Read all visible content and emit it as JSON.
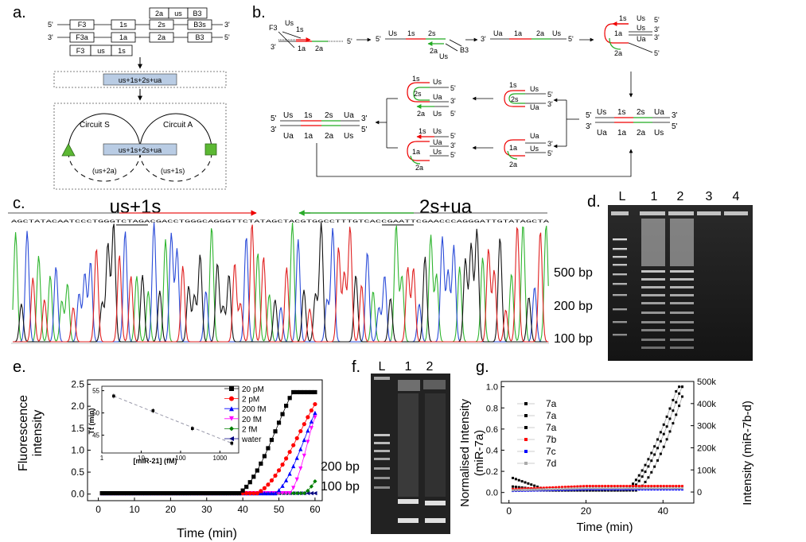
{
  "panel_labels": {
    "a": "a.",
    "b": "b.",
    "c": "c.",
    "d": "d.",
    "e": "e.",
    "f": "f.",
    "g": "g."
  },
  "panel_a": {
    "strand_top": [
      "F3",
      "1s",
      "2s",
      "B3s"
    ],
    "strand_bottom": [
      "F3a",
      "1a",
      "2a",
      "B3"
    ],
    "primer_top": [
      "2a",
      "us",
      "B3"
    ],
    "primer_bottom": [
      "F3",
      "us",
      "1s"
    ],
    "product": "us+1s+2s+ua",
    "circuit_s": "Circuit S",
    "circuit_a": "Circuit A",
    "circle_product": "us+1s+2s+ua",
    "loop_left": "(us+2a)",
    "loop_right": "(us+1s)",
    "ends": {
      "five": "5'",
      "three": "3'"
    }
  },
  "panel_b": {
    "labels": {
      "F3": "F3",
      "Us": "Us",
      "1s": "1s",
      "1a": "1a",
      "2a": "2a",
      "2s": "2s",
      "B3": "B3",
      "Ua": "Ua",
      "five": "5'",
      "three": "3'"
    }
  },
  "panel_c": {
    "left_title": "us+1s",
    "right_title": "2s+ua",
    "sequence": "AGCTATACAATCCCTGGGTCTAGACGACCTGGGCAGGGTTCTATAGCTACGTGGCCTTTGTCACCGAATTCGAACCCAGGGATTGTATAGCTA",
    "size_markers": [
      "500 bp",
      "200 bp",
      "100 bp"
    ]
  },
  "panel_d": {
    "lanes": [
      "L",
      "1",
      "2",
      "3",
      "4"
    ]
  },
  "panel_e": {
    "y_label": [
      "Fluorescence",
      "intensity"
    ],
    "x_label": "Time (min)",
    "inset_x_label": "[miR-21] (fM)",
    "inset_y_label": "Tt (min)",
    "size_markers": [
      "200 bp",
      "100 bp"
    ],
    "legend": [
      {
        "name": "20 pM",
        "color": "#000000",
        "marker": "square"
      },
      {
        "name": "2 pM",
        "color": "#ff0000",
        "marker": "circle"
      },
      {
        "name": "200 fM",
        "color": "#0000ff",
        "marker": "triangle-up"
      },
      {
        "name": "20 fM",
        "color": "#ff00ff",
        "marker": "triangle-down"
      },
      {
        "name": "2 fM",
        "color": "#008000",
        "marker": "diamond"
      },
      {
        "name": "water",
        "color": "#000080",
        "marker": "triangle-left"
      }
    ]
  },
  "panel_f": {
    "lanes": [
      "L",
      "1",
      "2"
    ]
  },
  "panel_g": {
    "y_label_left": [
      "Normalised Intensity",
      "(miR-7a)"
    ],
    "y_label_right": "Intensity (miR-7b-d)",
    "x_label": "Time (min)",
    "legend": [
      {
        "name": "7a",
        "color": "#000000"
      },
      {
        "name": "7a",
        "color": "#000000"
      },
      {
        "name": "7a",
        "color": "#000000"
      },
      {
        "name": "7b",
        "color": "#ff0000"
      },
      {
        "name": "7c",
        "color": "#0000ff"
      },
      {
        "name": "7d",
        "color": "#aaaaaa"
      }
    ]
  },
  "chart_data": [
    {
      "id": "e",
      "type": "scatter",
      "title": "",
      "xlabel": "Time (min)",
      "ylabel": "Fluorescence intensity",
      "xlim": [
        -3,
        62
      ],
      "ylim": [
        -0.15,
        2.6
      ],
      "xticks": [
        0,
        10,
        20,
        30,
        40,
        50,
        60
      ],
      "yticks": [
        0.0,
        0.5,
        1.0,
        1.5,
        2.0,
        2.5
      ],
      "series": [
        {
          "name": "20 pM",
          "onset": 39,
          "end": 54,
          "max": 2.32
        },
        {
          "name": "2 pM",
          "onset": 44,
          "end": 61,
          "max": 2.15
        },
        {
          "name": "200 fM",
          "onset": 49,
          "end": 61,
          "max": 2.0
        },
        {
          "name": "20 fM",
          "onset": 53,
          "end": 60,
          "max": 1.75
        },
        {
          "name": "2 fM",
          "onset": 57,
          "end": 61,
          "max": 0.38
        },
        {
          "name": "water",
          "onset": 100,
          "end": 100,
          "max": 0.0
        }
      ],
      "x_step": 1
    },
    {
      "id": "e-inset",
      "type": "scatter",
      "xlabel": "[miR-21] (fM)",
      "ylabel": "Tt (min)",
      "xscale": "log",
      "xlim": [
        1,
        3000
      ],
      "ylim": [
        41,
        56
      ],
      "yticks": [
        45,
        50,
        55
      ],
      "xticks": [
        1,
        10,
        100,
        1000
      ],
      "xtick_labels": [
        "1",
        "10",
        "100",
        "1000"
      ],
      "points": [
        {
          "x": 2,
          "y": 53.8
        },
        {
          "x": 20,
          "y": 50.5
        },
        {
          "x": 200,
          "y": 46.5
        },
        {
          "x": 2000,
          "y": 43.2
        }
      ]
    },
    {
      "id": "g",
      "type": "line",
      "xlabel": "Time (min)",
      "ylabel": "Normalised Intensity (miR-7a)",
      "y2label": "Intensity (miR-7b-d)",
      "xlim": [
        -2,
        48
      ],
      "ylim": [
        -0.1,
        1.05
      ],
      "y2lim": [
        -50000,
        500000
      ],
      "xticks": [
        0,
        20,
        40
      ],
      "yticks": [
        0.0,
        0.2,
        0.4,
        0.6,
        0.8,
        1.0
      ],
      "y2ticks": [
        0,
        100000,
        200000,
        300000,
        400000,
        500000
      ],
      "y2tick_labels": [
        "0",
        "100k",
        "200k",
        "300k",
        "400k",
        "500k"
      ],
      "series": [
        {
          "name": "7a",
          "onset": 30,
          "end": 44,
          "start": 0.15
        },
        {
          "name": "7a",
          "onset": 31,
          "end": 45,
          "start": 0.06
        },
        {
          "name": "7a",
          "onset": 33,
          "end": 46,
          "start": 0.02
        },
        {
          "name": "7b",
          "flat": 0.06
        },
        {
          "name": "7c",
          "flat": 0.03
        },
        {
          "name": "7d",
          "flat": 0.04
        }
      ]
    }
  ]
}
